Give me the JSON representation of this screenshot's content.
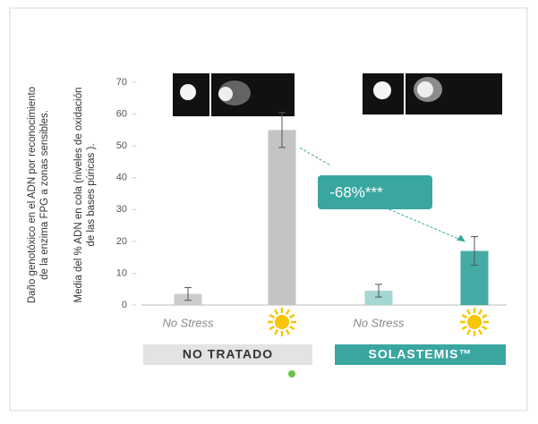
{
  "chart_data": {
    "type": "bar",
    "y_title_lines": [
      "Daño genotóxico en el ADN por reconocimiento",
      "de la enzima FPG a zonas sensibles.",
      "Media del % ADN en cola (niveles de oxidación",
      "de las bases púricas )."
    ],
    "categories": [
      "No Stress",
      null,
      "No Stress",
      null
    ],
    "values": [
      3.5,
      55,
      4.5,
      17
    ],
    "errors": [
      2,
      5.5,
      2,
      4.5
    ],
    "colors": [
      "#cccccc",
      "#c4c4c4",
      "#a4d6d2",
      "#43aba4"
    ],
    "groups": [
      "NO TRATADO",
      "SOLASTEMIS™"
    ],
    "group_colors": [
      "#e3e3e3",
      "#3aa6a0"
    ],
    "annotation": "-68%***",
    "ylim": [
      0,
      70
    ],
    "yticks": [
      0,
      10,
      20,
      30,
      40,
      50,
      60,
      70
    ]
  }
}
